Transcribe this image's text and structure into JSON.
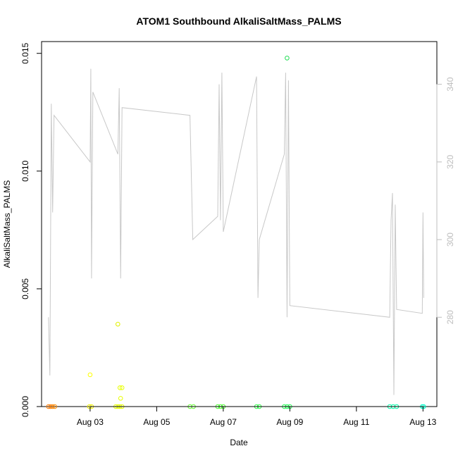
{
  "chart_data": {
    "type": "scatter",
    "title": "ATOM1 Southbound AlkaliSaltMass_PALMS",
    "xlabel": "Date",
    "ylabel": "AlkaliSaltMass_PALMS",
    "xlim": [
      "2013-08-01T13:00",
      "2013-08-13T10:00"
    ],
    "ylim": [
      0,
      0.0155
    ],
    "x_ticks": [
      {
        "label": "Aug 03",
        "value": "2013-08-03T00:00"
      },
      {
        "label": "Aug 05",
        "value": "2013-08-05T00:00"
      },
      {
        "label": "Aug 07",
        "value": "2013-08-07T00:00"
      },
      {
        "label": "Aug 09",
        "value": "2013-08-09T00:00"
      },
      {
        "label": "Aug 11",
        "value": "2013-08-11T00:00"
      },
      {
        "label": "Aug 13",
        "value": "2013-08-13T00:00"
      }
    ],
    "y_ticks": [
      {
        "label": "0.000",
        "value": 0
      },
      {
        "label": "0.005",
        "value": 0.005
      },
      {
        "label": "0.010",
        "value": 0.01
      },
      {
        "label": "0.015",
        "value": 0.015
      }
    ],
    "y2lim": [
      257,
      351
    ],
    "y2_ticks": [
      {
        "label": "280",
        "value": 280
      },
      {
        "label": "300",
        "value": 300
      },
      {
        "label": "320",
        "value": 320
      },
      {
        "label": "340",
        "value": 340
      }
    ],
    "grid": false,
    "points": [
      {
        "x": "2013-08-01T18:00",
        "y": 0,
        "color": "#ff7a00"
      },
      {
        "x": "2013-08-01T19:30",
        "y": 0,
        "color": "#ff7a00"
      },
      {
        "x": "2013-08-01T21:00",
        "y": 0,
        "color": "#ff8400"
      },
      {
        "x": "2013-08-01T22:30",
        "y": 0,
        "color": "#ff8c00"
      },
      {
        "x": "2013-08-03T00:00",
        "y": 0.00135,
        "color": "#ffff00"
      },
      {
        "x": "2013-08-02T23:30",
        "y": 0,
        "color": "#f0f000"
      },
      {
        "x": "2013-08-03T01:00",
        "y": 0,
        "color": "#f0f000"
      },
      {
        "x": "2013-08-03T20:00",
        "y": 0.0035,
        "color": "#e0f000"
      },
      {
        "x": "2013-08-03T21:30",
        "y": 0.0008,
        "color": "#e8ff00"
      },
      {
        "x": "2013-08-03T23:00",
        "y": 0.0008,
        "color": "#e8ff00"
      },
      {
        "x": "2013-08-03T22:00",
        "y": 0.00035,
        "color": "#e8ff00"
      },
      {
        "x": "2013-08-03T18:30",
        "y": 0,
        "color": "#e6ff00"
      },
      {
        "x": "2013-08-03T20:00",
        "y": 0,
        "color": "#e6ff00"
      },
      {
        "x": "2013-08-03T21:30",
        "y": 0,
        "color": "#e6ff00"
      },
      {
        "x": "2013-08-03T23:00",
        "y": 0,
        "color": "#e6ff00"
      },
      {
        "x": "2013-08-06T00:00",
        "y": 0,
        "color": "#66ff33"
      },
      {
        "x": "2013-08-06T02:30",
        "y": 0,
        "color": "#66ff33"
      },
      {
        "x": "2013-08-06T20:00",
        "y": 0,
        "color": "#4dff33"
      },
      {
        "x": "2013-08-06T22:00",
        "y": 0,
        "color": "#4dff33"
      },
      {
        "x": "2013-08-07T00:00",
        "y": 0,
        "color": "#4dff33"
      },
      {
        "x": "2013-08-08T00:00",
        "y": 0,
        "color": "#33ff4d"
      },
      {
        "x": "2013-08-08T02:00",
        "y": 0,
        "color": "#33ff4d"
      },
      {
        "x": "2013-08-08T20:00",
        "y": 0,
        "color": "#22ff55"
      },
      {
        "x": "2013-08-08T22:00",
        "y": 0,
        "color": "#22ff55"
      },
      {
        "x": "2013-08-09T00:00",
        "y": 0,
        "color": "#22ff55"
      },
      {
        "x": "2013-08-08T22:00",
        "y": 0.0148,
        "color": "#22dd55"
      },
      {
        "x": "2013-08-12T00:00",
        "y": 0,
        "color": "#00ffaa"
      },
      {
        "x": "2013-08-12T02:30",
        "y": 0,
        "color": "#00ffaa"
      },
      {
        "x": "2013-08-12T05:00",
        "y": 0,
        "color": "#00ffaa"
      },
      {
        "x": "2013-08-12T23:30",
        "y": 0,
        "color": "#00ffcc"
      },
      {
        "x": "2013-08-13T00:30",
        "y": 0,
        "color": "#00ffcc"
      }
    ],
    "line_series_secondary_axis": [
      {
        "x": "2013-08-01T18:00",
        "y2": 280
      },
      {
        "x": "2013-08-01T19:00",
        "y2": 265
      },
      {
        "x": "2013-08-01T20:00",
        "y2": 335
      },
      {
        "x": "2013-08-01T21:00",
        "y2": 307
      },
      {
        "x": "2013-08-01T22:00",
        "y2": 332
      },
      {
        "x": "2013-08-03T00:00",
        "y2": 320
      },
      {
        "x": "2013-08-03T00:30",
        "y2": 344
      },
      {
        "x": "2013-08-03T01:00",
        "y2": 290
      },
      {
        "x": "2013-08-03T02:00",
        "y2": 338
      },
      {
        "x": "2013-08-03T20:00",
        "y2": 322
      },
      {
        "x": "2013-08-03T21:00",
        "y2": 339
      },
      {
        "x": "2013-08-03T22:00",
        "y2": 290
      },
      {
        "x": "2013-08-03T23:00",
        "y2": 334
      },
      {
        "x": "2013-08-06T00:00",
        "y2": 332
      },
      {
        "x": "2013-08-06T02:00",
        "y2": 300
      },
      {
        "x": "2013-08-06T20:00",
        "y2": 306
      },
      {
        "x": "2013-08-06T21:00",
        "y2": 340
      },
      {
        "x": "2013-08-06T22:00",
        "y2": 305
      },
      {
        "x": "2013-08-06T23:00",
        "y2": 343
      },
      {
        "x": "2013-08-07T00:00",
        "y2": 302
      },
      {
        "x": "2013-08-08T00:00",
        "y2": 342
      },
      {
        "x": "2013-08-08T01:00",
        "y2": 285
      },
      {
        "x": "2013-08-08T02:00",
        "y2": 300
      },
      {
        "x": "2013-08-08T20:00",
        "y2": 322
      },
      {
        "x": "2013-08-08T21:00",
        "y2": 343
      },
      {
        "x": "2013-08-08T22:00",
        "y2": 280
      },
      {
        "x": "2013-08-08T23:00",
        "y2": 341
      },
      {
        "x": "2013-08-09T00:00",
        "y2": 283
      },
      {
        "x": "2013-08-12T00:00",
        "y2": 280
      },
      {
        "x": "2013-08-12T01:00",
        "y2": 305
      },
      {
        "x": "2013-08-12T02:00",
        "y2": 312
      },
      {
        "x": "2013-08-12T03:00",
        "y2": 260
      },
      {
        "x": "2013-08-12T04:00",
        "y2": 309
      },
      {
        "x": "2013-08-12T05:00",
        "y2": 282
      },
      {
        "x": "2013-08-12T23:30",
        "y2": 281
      },
      {
        "x": "2013-08-13T00:00",
        "y2": 307
      },
      {
        "x": "2013-08-13T00:30",
        "y2": 285
      }
    ],
    "colors": {
      "line": "#c8c8c8",
      "secondary_axis": "#bdbdbd"
    }
  }
}
